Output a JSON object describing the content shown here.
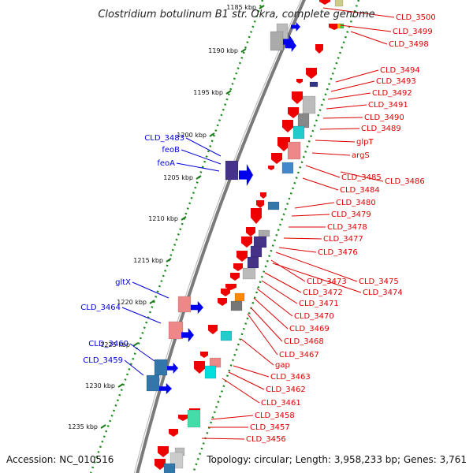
{
  "title": "Clostridium botulinum B1 str. Okra, complete genome",
  "footer": {
    "accession": "Accession: NC_010516",
    "summary": "Topology: circular; Length: 3,958,233 bp; Genes: 3,761"
  },
  "colors": {
    "forward": "#0000ee",
    "reverse": "#ee0000",
    "backbone": "#808080",
    "tick": "#117711"
  },
  "kbp_labels": [
    "1185 kbp",
    "1190 kbp",
    "1195 kbp",
    "1200 kbp",
    "1205 kbp",
    "1210 kbp",
    "1215 kbp",
    "1220 kbp",
    "1225 kbp",
    "1230 kbp",
    "1235 kbp"
  ],
  "left_labels": [
    "CLD_3483",
    "feoB",
    "feoA",
    "gltX",
    "CLD_3464",
    "CLD_3460",
    "CLD_3459"
  ],
  "right_labels": [
    "CLD_3500",
    "CLD_3499",
    "CLD_3498",
    "CLD_3494",
    "CLD_3493",
    "CLD_3492",
    "CLD_3491",
    "CLD_3490",
    "CLD_3489",
    "glpT",
    "argS",
    "CLD_3485",
    "CLD_3486",
    "CLD_3484",
    "CLD_3480",
    "CLD_3479",
    "CLD_3478",
    "CLD_3477",
    "CLD_3476",
    "CLD_3475",
    "CLD_3473",
    "CLD_3474",
    "CLD_3472",
    "CLD_3471",
    "CLD_3470",
    "CLD_3469",
    "CLD_3468",
    "CLD_3467",
    "gap",
    "CLD_3463",
    "CLD_3462",
    "CLD_3461",
    "CLD_3458",
    "CLD_3457",
    "CLD_3456"
  ]
}
